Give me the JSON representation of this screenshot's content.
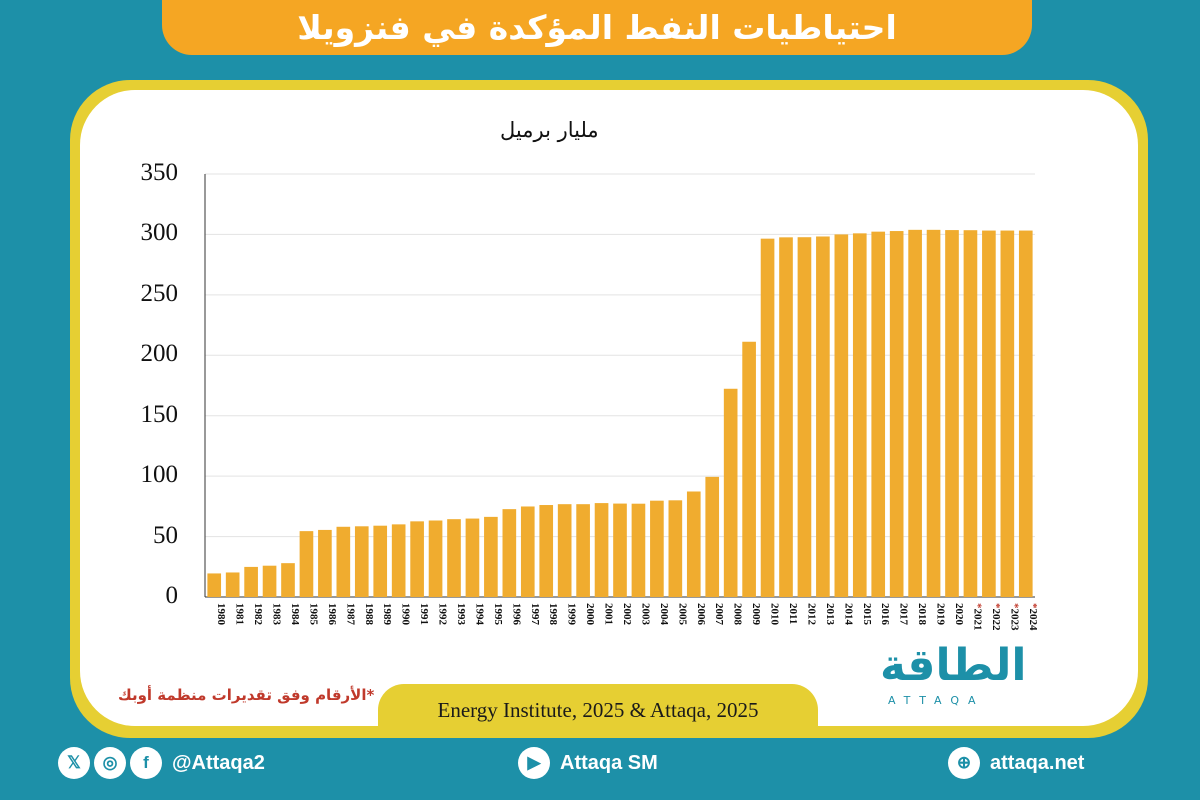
{
  "header": {
    "title": "احتياطيات النفط المؤكدة في فنزويلا"
  },
  "chart": {
    "unit_label": "مليار برميل",
    "yticks": [
      "0",
      "50",
      "100",
      "150",
      "200",
      "250",
      "300",
      "350"
    ]
  },
  "chart_data": {
    "type": "bar",
    "title": "احتياطيات النفط المؤكدة في فنزويلا",
    "ylabel": "مليار برميل",
    "ylim": [
      0,
      350
    ],
    "categories": [
      "1980",
      "1981",
      "1982",
      "1983",
      "1984",
      "1985",
      "1986",
      "1987",
      "1988",
      "1989",
      "1990",
      "1991",
      "1992",
      "1993",
      "1994",
      "1995",
      "1996",
      "1997",
      "1998",
      "1999",
      "2000",
      "2001",
      "2002",
      "2003",
      "2004",
      "2005",
      "2006",
      "2007",
      "2008",
      "2009",
      "2010",
      "2011",
      "2012",
      "2013",
      "2014",
      "2015",
      "2016",
      "2017",
      "2018",
      "2019",
      "2020",
      "2021*",
      "2022*",
      "2023*",
      "2024*"
    ],
    "values": [
      19.5,
      20.3,
      24.9,
      25.9,
      28.0,
      54.5,
      55.5,
      58.1,
      58.5,
      59.0,
      60.1,
      62.6,
      63.3,
      64.4,
      64.9,
      66.3,
      72.7,
      74.9,
      76.1,
      76.8,
      76.8,
      77.7,
      77.3,
      77.2,
      79.7,
      80.0,
      87.3,
      99.4,
      172.3,
      211.2,
      296.5,
      297.6,
      297.7,
      298.3,
      300.0,
      300.9,
      302.3,
      302.8,
      303.8,
      303.8,
      303.6,
      303.5,
      303.2,
      303.2,
      303.2
    ],
    "color": "#f0ac2f",
    "grid": true
  },
  "footnote": "*الأرقام وفق تقديرات منظمة أوبك",
  "source": "Energy Institute, 2025 & Attaqa, 2025",
  "logo": {
    "arabic": "الطاقة",
    "english": "ATTAQA"
  },
  "footer": {
    "social_handle": "@Attaqa2",
    "youtube_label": "Attaqa SM",
    "website": "attaqa.net",
    "icons": [
      "x-icon",
      "instagram-icon",
      "facebook-icon",
      "youtube-icon",
      "globe-icon"
    ]
  }
}
